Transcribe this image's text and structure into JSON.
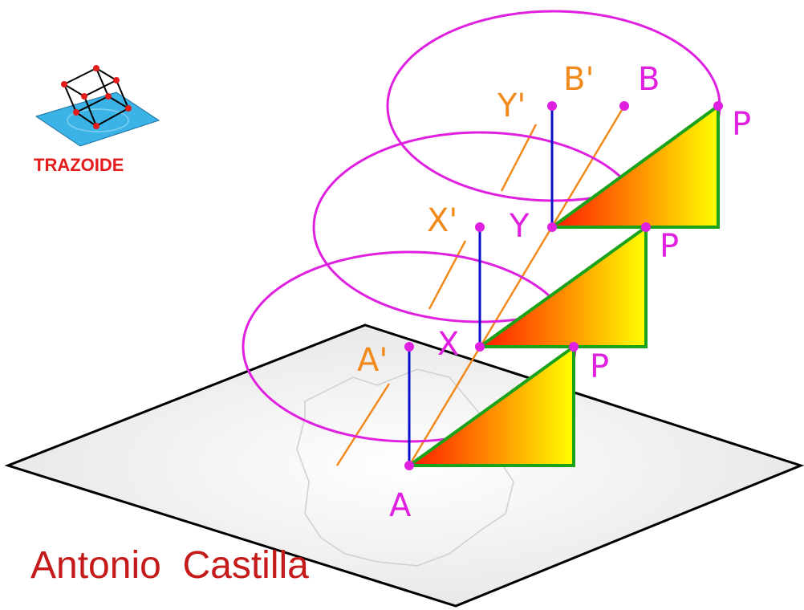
{
  "logo": {
    "text": "TRAZOIDE"
  },
  "author": {
    "name": "Antonio  Castilla"
  },
  "labels": {
    "point_a": "A",
    "point_a_prime": "A'",
    "point_x": "X",
    "point_x_prime": "X'",
    "point_y": "Y",
    "point_y_prime": "Y'",
    "point_b": "B",
    "point_b_prime": "B'",
    "point_p1": "P",
    "point_p2": "P",
    "point_p3": "P"
  },
  "colors": {
    "circle": "#e020e0",
    "point": "#e020e0",
    "vertical_line": "#0a10c8",
    "helix_line": "#f08a1c",
    "triangle_border": "#1aa31a",
    "gradient_start": "#ff1a00",
    "gradient_end": "#ffff00",
    "plane_fill": "#f2f2f2",
    "plane_border": "#000000",
    "logo_plate": "#3cb3e6",
    "logo_text": "#e41b1b",
    "author_text": "#c41a1a"
  }
}
